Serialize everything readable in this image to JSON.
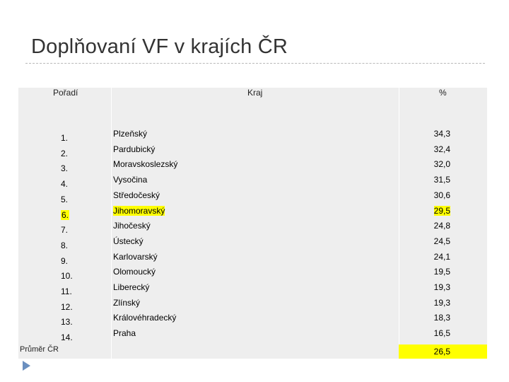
{
  "title": "Doplňovaní VF v krajích ČR",
  "table": {
    "headers": {
      "rank": "Pořadí",
      "region": "Kraj",
      "percent": "%"
    },
    "rows": [
      {
        "rank": "1.",
        "region": "Plzeňský",
        "percent": "34,3"
      },
      {
        "rank": "2.",
        "region": "Pardubický",
        "percent": "32,4"
      },
      {
        "rank": "3.",
        "region": "Moravskoslezský",
        "percent": "32,0"
      },
      {
        "rank": "4.",
        "region": "Vysočina",
        "percent": "31,5"
      },
      {
        "rank": "5.",
        "region": "Středočeský",
        "percent": "30,6"
      },
      {
        "rank": "6.",
        "region": "Jihomoravský",
        "percent": "29,5"
      },
      {
        "rank": "7.",
        "region": "Jihočeský",
        "percent": "24,8"
      },
      {
        "rank": "8.",
        "region": "Ústecký",
        "percent": "24,5"
      },
      {
        "rank": "9.",
        "region": "Karlovarský",
        "percent": "24,1"
      },
      {
        "rank": "10.",
        "region": "Olomoucký",
        "percent": "19,5"
      },
      {
        "rank": "11.",
        "region": "Liberecký",
        "percent": "19,3"
      },
      {
        "rank": "12.",
        "region": "Zlínský",
        "percent": "19,3"
      },
      {
        "rank": "13.",
        "region": "Královéhradecký",
        "percent": "18,3"
      },
      {
        "rank": "14.",
        "region": "Praha",
        "percent": "16,5"
      }
    ],
    "highlighted_row_index": 5,
    "average": {
      "label": "Průměr ČR",
      "percent": "26,5"
    }
  },
  "colors": {
    "highlight": "#ffff00",
    "table_background": "#eeeeee",
    "bullet": "#6a8fbf"
  },
  "icons": {
    "bullet": "triangle-bullet-icon"
  }
}
